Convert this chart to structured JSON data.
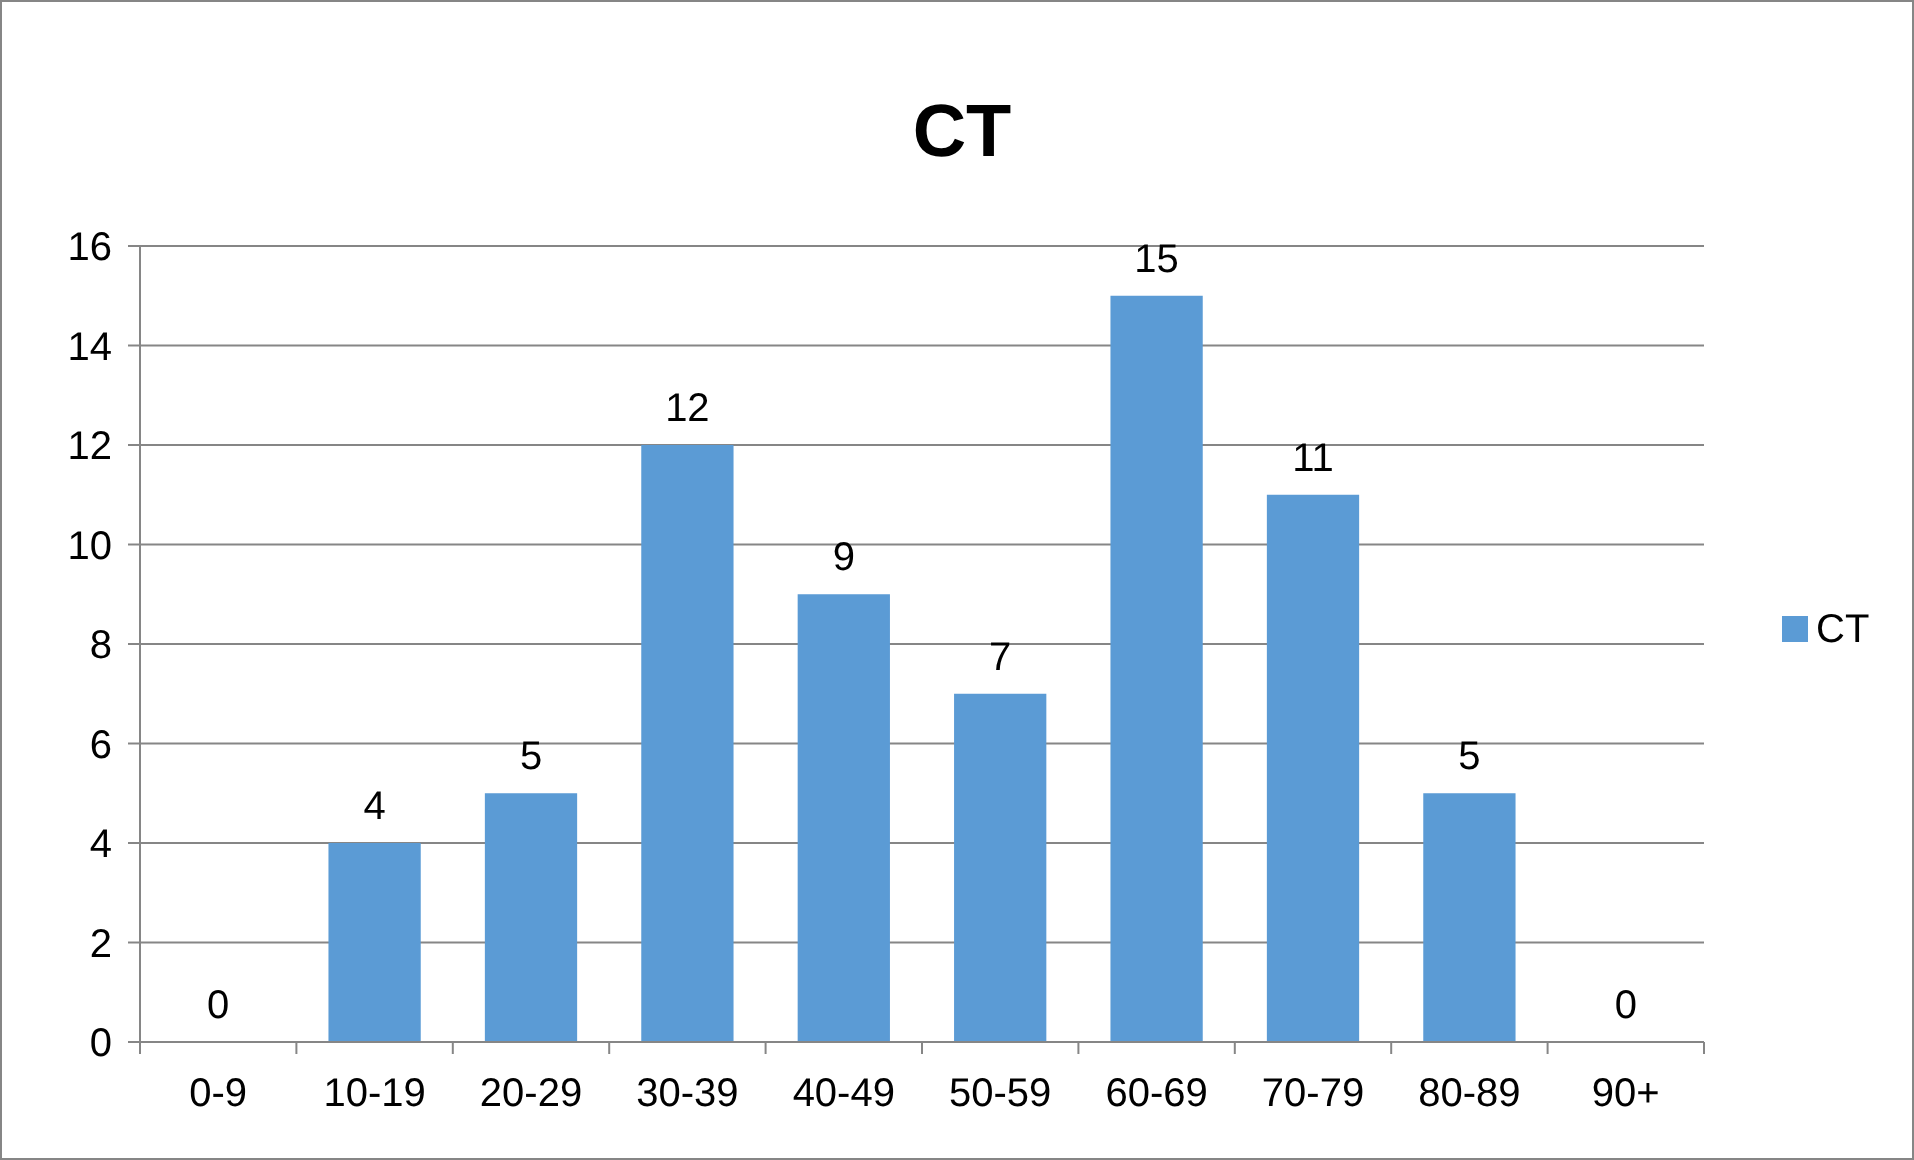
{
  "chart_data": {
    "type": "bar",
    "title": "CT",
    "categories": [
      "0-9",
      "10-19",
      "20-29",
      "30-39",
      "40-49",
      "50-59",
      "60-69",
      "70-79",
      "80-89",
      "90+"
    ],
    "series": [
      {
        "name": "CT",
        "color": "#5b9bd5",
        "values": [
          0,
          4,
          5,
          12,
          9,
          7,
          15,
          11,
          5,
          0
        ]
      }
    ],
    "ylim": [
      0,
      16
    ],
    "yticks": [
      0,
      2,
      4,
      6,
      8,
      10,
      12,
      14,
      16
    ],
    "grid": "y",
    "legend": "right",
    "data_labels": true
  }
}
